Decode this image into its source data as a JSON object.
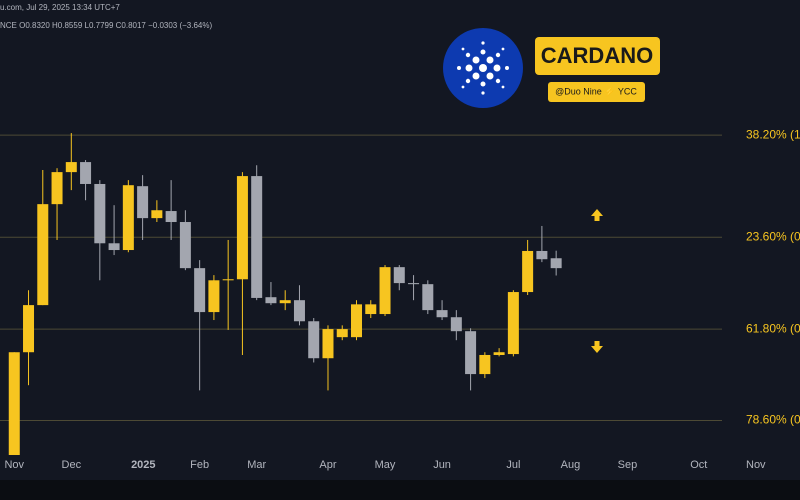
{
  "header": {
    "source_line": "u.com, Jul 29, 2025 13:34 UTC+7",
    "ohlc_line": "NCE O0.8320 H0.8559 L0.7799 C0.8017 −0.0303 (−3.64%)"
  },
  "badge": {
    "title": "CARDANO",
    "author": "@Duo Nine ⚡ YCC"
  },
  "chart_data": {
    "type": "candlestick",
    "log_scale": true,
    "up_color": "#f7c520",
    "down_color": "#a3a6af",
    "level_color": "#f7c520",
    "x": [
      0,
      1,
      2,
      3,
      4,
      5,
      6,
      7,
      8,
      9,
      10,
      11,
      12,
      13,
      14,
      15,
      16,
      17,
      18,
      19,
      20,
      21,
      22,
      23,
      24,
      25,
      26,
      27,
      28,
      29,
      30,
      31,
      32,
      33,
      34,
      35,
      36,
      37,
      38
    ],
    "open": [
      0.398,
      0.585,
      0.698,
      1.019,
      1.149,
      1.193,
      1.099,
      0.88,
      0.858,
      1.09,
      0.967,
      0.993,
      0.953,
      0.8017,
      0.68,
      0.766,
      0.769,
      1.132,
      0.719,
      0.703,
      0.711,
      0.657,
      0.572,
      0.619,
      0.619,
      0.675,
      0.675,
      0.8047,
      0.758,
      0.755,
      0.685,
      0.667,
      0.633,
      0.539,
      0.579,
      0.581,
      0.733,
      0.855,
      0.832
    ],
    "high": [
      0.585,
      0.738,
      1.158,
      1.166,
      1.33,
      1.202,
      1.115,
      1.015,
      1.115,
      1.136,
      1.034,
      1.115,
      0.996,
      0.826,
      0.781,
      0.891,
      1.149,
      1.179,
      0.761,
      0.738,
      0.752,
      0.665,
      0.647,
      0.647,
      0.711,
      0.711,
      0.811,
      0.811,
      0.781,
      0.766,
      0.711,
      0.685,
      0.64,
      0.585,
      0.594,
      0.738,
      0.891,
      0.939,
      0.8559
    ],
    "low": [
      0.398,
      0.517,
      0.698,
      0.891,
      1.074,
      1.034,
      0.766,
      0.842,
      0.851,
      0.891,
      0.953,
      0.891,
      0.7957,
      0.507,
      0.66,
      0.636,
      0.579,
      0.711,
      0.698,
      0.685,
      0.647,
      0.563,
      0.507,
      0.612,
      0.612,
      0.665,
      0.67,
      0.738,
      0.711,
      0.675,
      0.66,
      0.612,
      0.507,
      0.531,
      0.576,
      0.576,
      0.725,
      0.82,
      0.7799
    ],
    "close": [
      0.585,
      0.698,
      1.019,
      1.149,
      1.193,
      1.099,
      0.88,
      0.858,
      1.094,
      0.967,
      0.996,
      0.953,
      0.8017,
      0.68,
      0.766,
      0.769,
      1.132,
      0.717,
      0.703,
      0.711,
      0.657,
      0.572,
      0.638,
      0.638,
      0.7,
      0.7,
      0.8047,
      0.758,
      0.755,
      0.685,
      0.667,
      0.633,
      0.539,
      0.579,
      0.585,
      0.733,
      0.855,
      0.829,
      0.8017
    ],
    "ylim": [
      0.398,
      2.19
    ],
    "xlim": [
      -1,
      55.1
    ],
    "levels": [
      {
        "value": 1.32,
        "label": "38.20% (1"
      },
      {
        "value": 0.9,
        "label": "23.60% (0"
      },
      {
        "value": 0.638,
        "label": "61.80% (0"
      },
      {
        "value": 0.453,
        "label": "78.60% (0"
      }
    ],
    "xticks": [
      {
        "value": 0,
        "label": "Nov"
      },
      {
        "value": 4,
        "label": "Dec"
      },
      {
        "value": 9.05,
        "label": "2025"
      },
      {
        "value": 13,
        "label": "Feb"
      },
      {
        "value": 17,
        "label": "Mar"
      },
      {
        "value": 22,
        "label": "Apr"
      },
      {
        "value": 26,
        "label": "May"
      },
      {
        "value": 30,
        "label": "Jun"
      },
      {
        "value": 35,
        "label": "Jul"
      },
      {
        "value": 39,
        "label": "Aug"
      },
      {
        "value": 43,
        "label": "Sep"
      },
      {
        "value": 48,
        "label": "Oct"
      },
      {
        "value": 52,
        "label": "Nov"
      }
    ]
  }
}
